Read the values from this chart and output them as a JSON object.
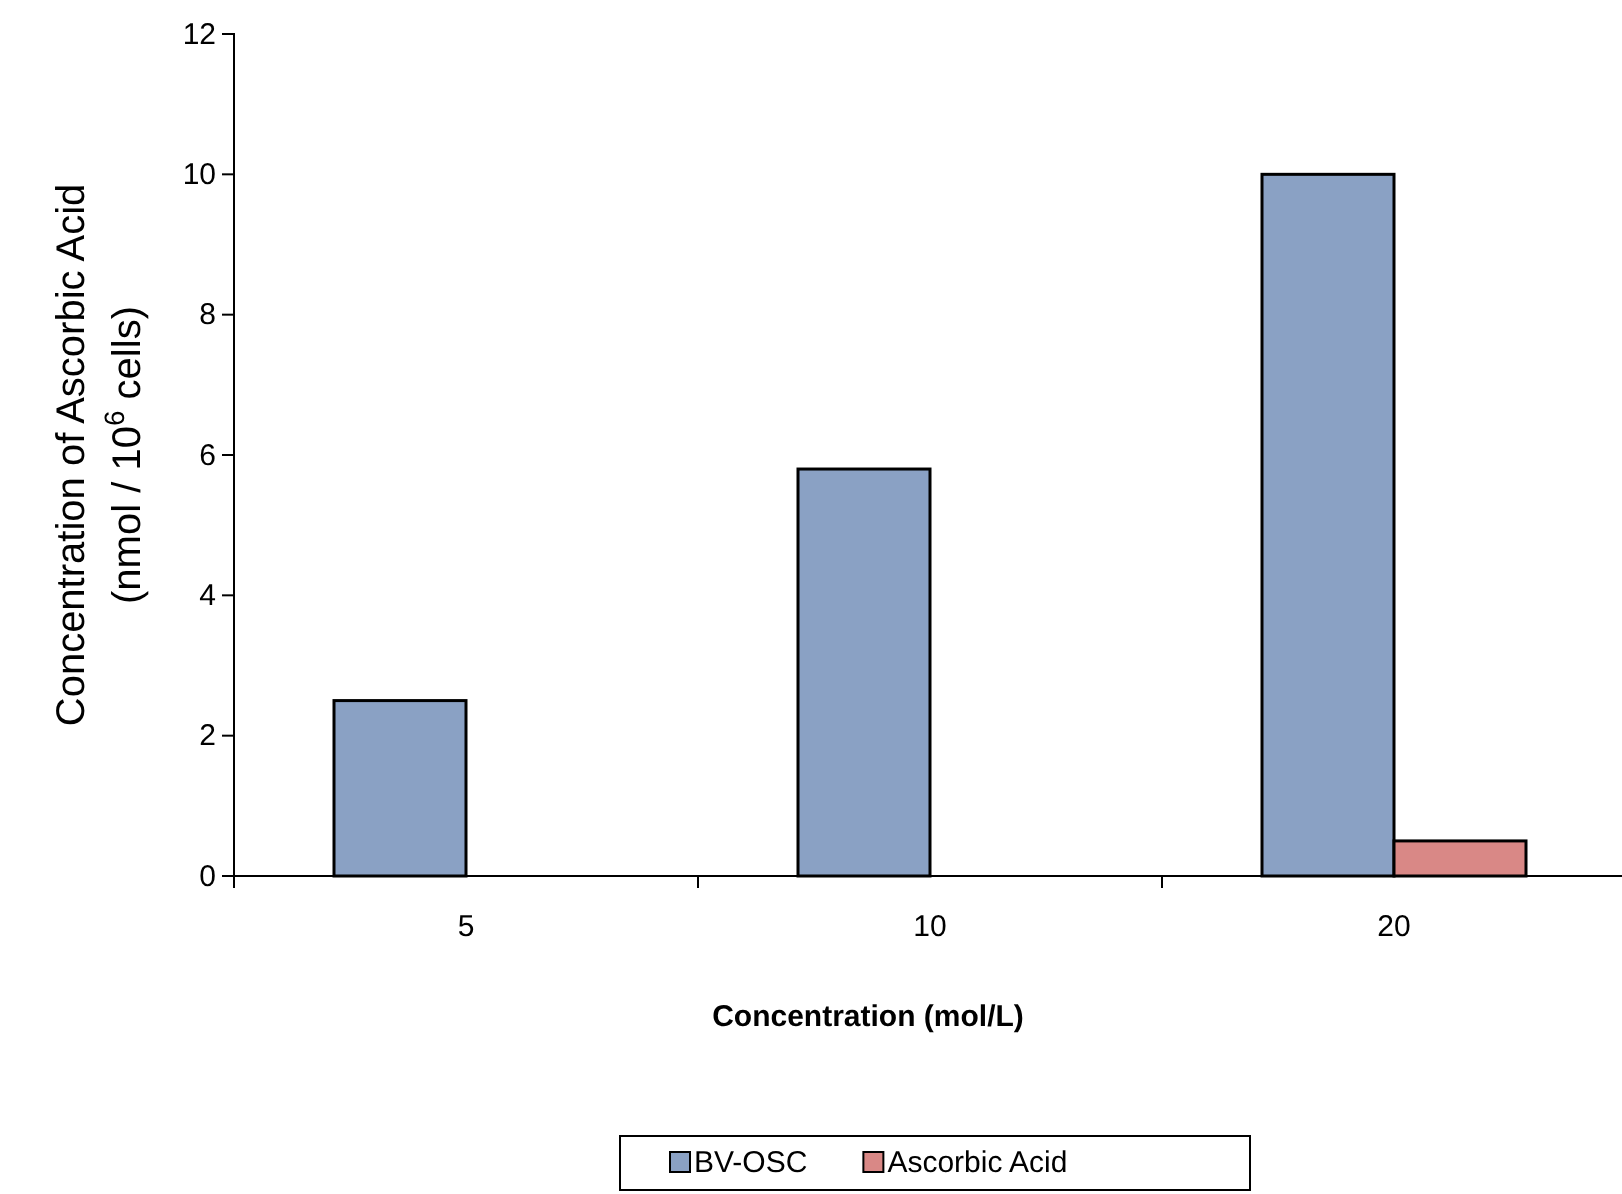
{
  "chart_data": {
    "type": "bar",
    "xlabel": "Concentration (mol/L)",
    "ylabel": "Concentration of Ascorbic Acid\n(nmol / 10$^{6}$ cells)",
    "categories": [
      "5",
      "10",
      "20"
    ],
    "series": [
      {
        "name": "BV-OSC",
        "color": "#8aa1c4",
        "values": [
          2.5,
          5.8,
          10
        ]
      },
      {
        "name": "Ascorbic Acid",
        "color": "#d98886",
        "values": [
          0,
          0,
          0.5
        ]
      }
    ],
    "ylim": [
      0,
      12
    ],
    "yticks": [
      0,
      2,
      4,
      6,
      8,
      10,
      12
    ],
    "grid": false,
    "legend": "bottom"
  }
}
